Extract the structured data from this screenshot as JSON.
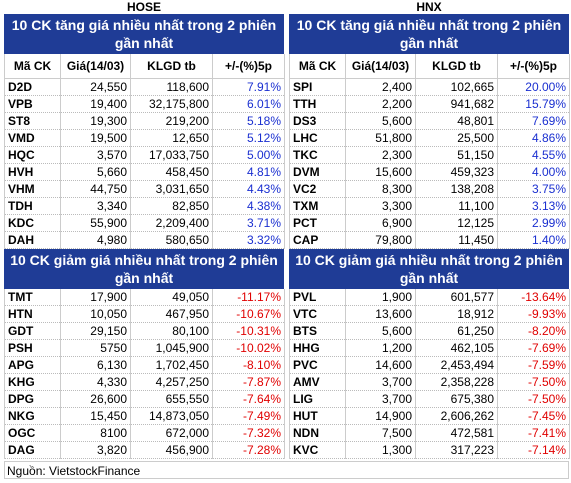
{
  "columns": [
    "Mã CK",
    "Giá(14/03)",
    "KLGD tb",
    "+/-(%)5p"
  ],
  "panels": [
    {
      "exchange": "HOSE",
      "gainers": {
        "title": "10 CK tăng giá nhiều nhất trong 2 phiên gần nhất",
        "rows": [
          [
            "D2D",
            "24,550",
            "118,600",
            "7.91%"
          ],
          [
            "VPB",
            "19,400",
            "32,175,800",
            "6.01%"
          ],
          [
            "ST8",
            "19,300",
            "219,200",
            "5.18%"
          ],
          [
            "VMD",
            "19,500",
            "12,650",
            "5.12%"
          ],
          [
            "HQC",
            "3,570",
            "17,033,750",
            "5.00%"
          ],
          [
            "HVH",
            "5,660",
            "458,450",
            "4.81%"
          ],
          [
            "VHM",
            "44,750",
            "3,031,650",
            "4.43%"
          ],
          [
            "TDH",
            "3,340",
            "82,850",
            "4.38%"
          ],
          [
            "KDC",
            "55,900",
            "2,209,400",
            "3.71%"
          ],
          [
            "DAH",
            "4,980",
            "580,650",
            "3.32%"
          ]
        ]
      },
      "losers": {
        "title": "10 CK giảm giá nhiều nhất trong 2 phiên gần nhất",
        "rows": [
          [
            "TMT",
            "17,900",
            "49,050",
            "-11.17%"
          ],
          [
            "HTN",
            "10,050",
            "467,950",
            "-10.67%"
          ],
          [
            "GDT",
            "29,150",
            "80,100",
            "-10.31%"
          ],
          [
            "PSH",
            "5750",
            "1,045,900",
            "-10.02%"
          ],
          [
            "APG",
            "6,130",
            "1,702,450",
            "-8.10%"
          ],
          [
            "KHG",
            "4,330",
            "4,257,250",
            "-7.87%"
          ],
          [
            "DPG",
            "26,600",
            "655,550",
            "-7.64%"
          ],
          [
            "NKG",
            "15,450",
            "14,873,050",
            "-7.49%"
          ],
          [
            "OGC",
            "8100",
            "672,000",
            "-7.32%"
          ],
          [
            "DAG",
            "3,820",
            "456,900",
            "-7.28%"
          ]
        ]
      }
    },
    {
      "exchange": "HNX",
      "gainers": {
        "title": "10 CK tăng giá nhiều nhất trong 2 phiên gần nhất",
        "rows": [
          [
            "SPI",
            "2,400",
            "102,665",
            "20.00%"
          ],
          [
            "TTH",
            "2,200",
            "941,682",
            "15.79%"
          ],
          [
            "DS3",
            "5,600",
            "48,801",
            "7.69%"
          ],
          [
            "LHC",
            "51,800",
            "25,500",
            "4.86%"
          ],
          [
            "TKC",
            "2,300",
            "51,150",
            "4.55%"
          ],
          [
            "DVM",
            "15,600",
            "459,323",
            "4.00%"
          ],
          [
            "VC2",
            "8,300",
            "138,208",
            "3.75%"
          ],
          [
            "TXM",
            "3,300",
            "11,100",
            "3.13%"
          ],
          [
            "PCT",
            "6,900",
            "12,125",
            "2.99%"
          ],
          [
            "CAP",
            "79,800",
            "11,450",
            "1.40%"
          ]
        ]
      },
      "losers": {
        "title": "10 CK giảm giá nhiều nhất trong 2 phiên gần nhất",
        "rows": [
          [
            "PVL",
            "1,900",
            "601,577",
            "-13.64%"
          ],
          [
            "VTC",
            "13,600",
            "18,912",
            "-9.93%"
          ],
          [
            "BTS",
            "5,600",
            "61,250",
            "-8.20%"
          ],
          [
            "HHG",
            "1,200",
            "462,105",
            "-7.69%"
          ],
          [
            "PVC",
            "14,600",
            "2,453,494",
            "-7.59%"
          ],
          [
            "AMV",
            "3,700",
            "2,358,228",
            "-7.50%"
          ],
          [
            "LIG",
            "3,700",
            "675,380",
            "-7.50%"
          ],
          [
            "HUT",
            "14,900",
            "2,606,262",
            "-7.45%"
          ],
          [
            "NDN",
            "7,500",
            "472,581",
            "-7.41%"
          ],
          [
            "KVC",
            "1,300",
            "317,223",
            "-7.14%"
          ]
        ]
      }
    }
  ],
  "source": "Nguồn: VietstockFinance"
}
